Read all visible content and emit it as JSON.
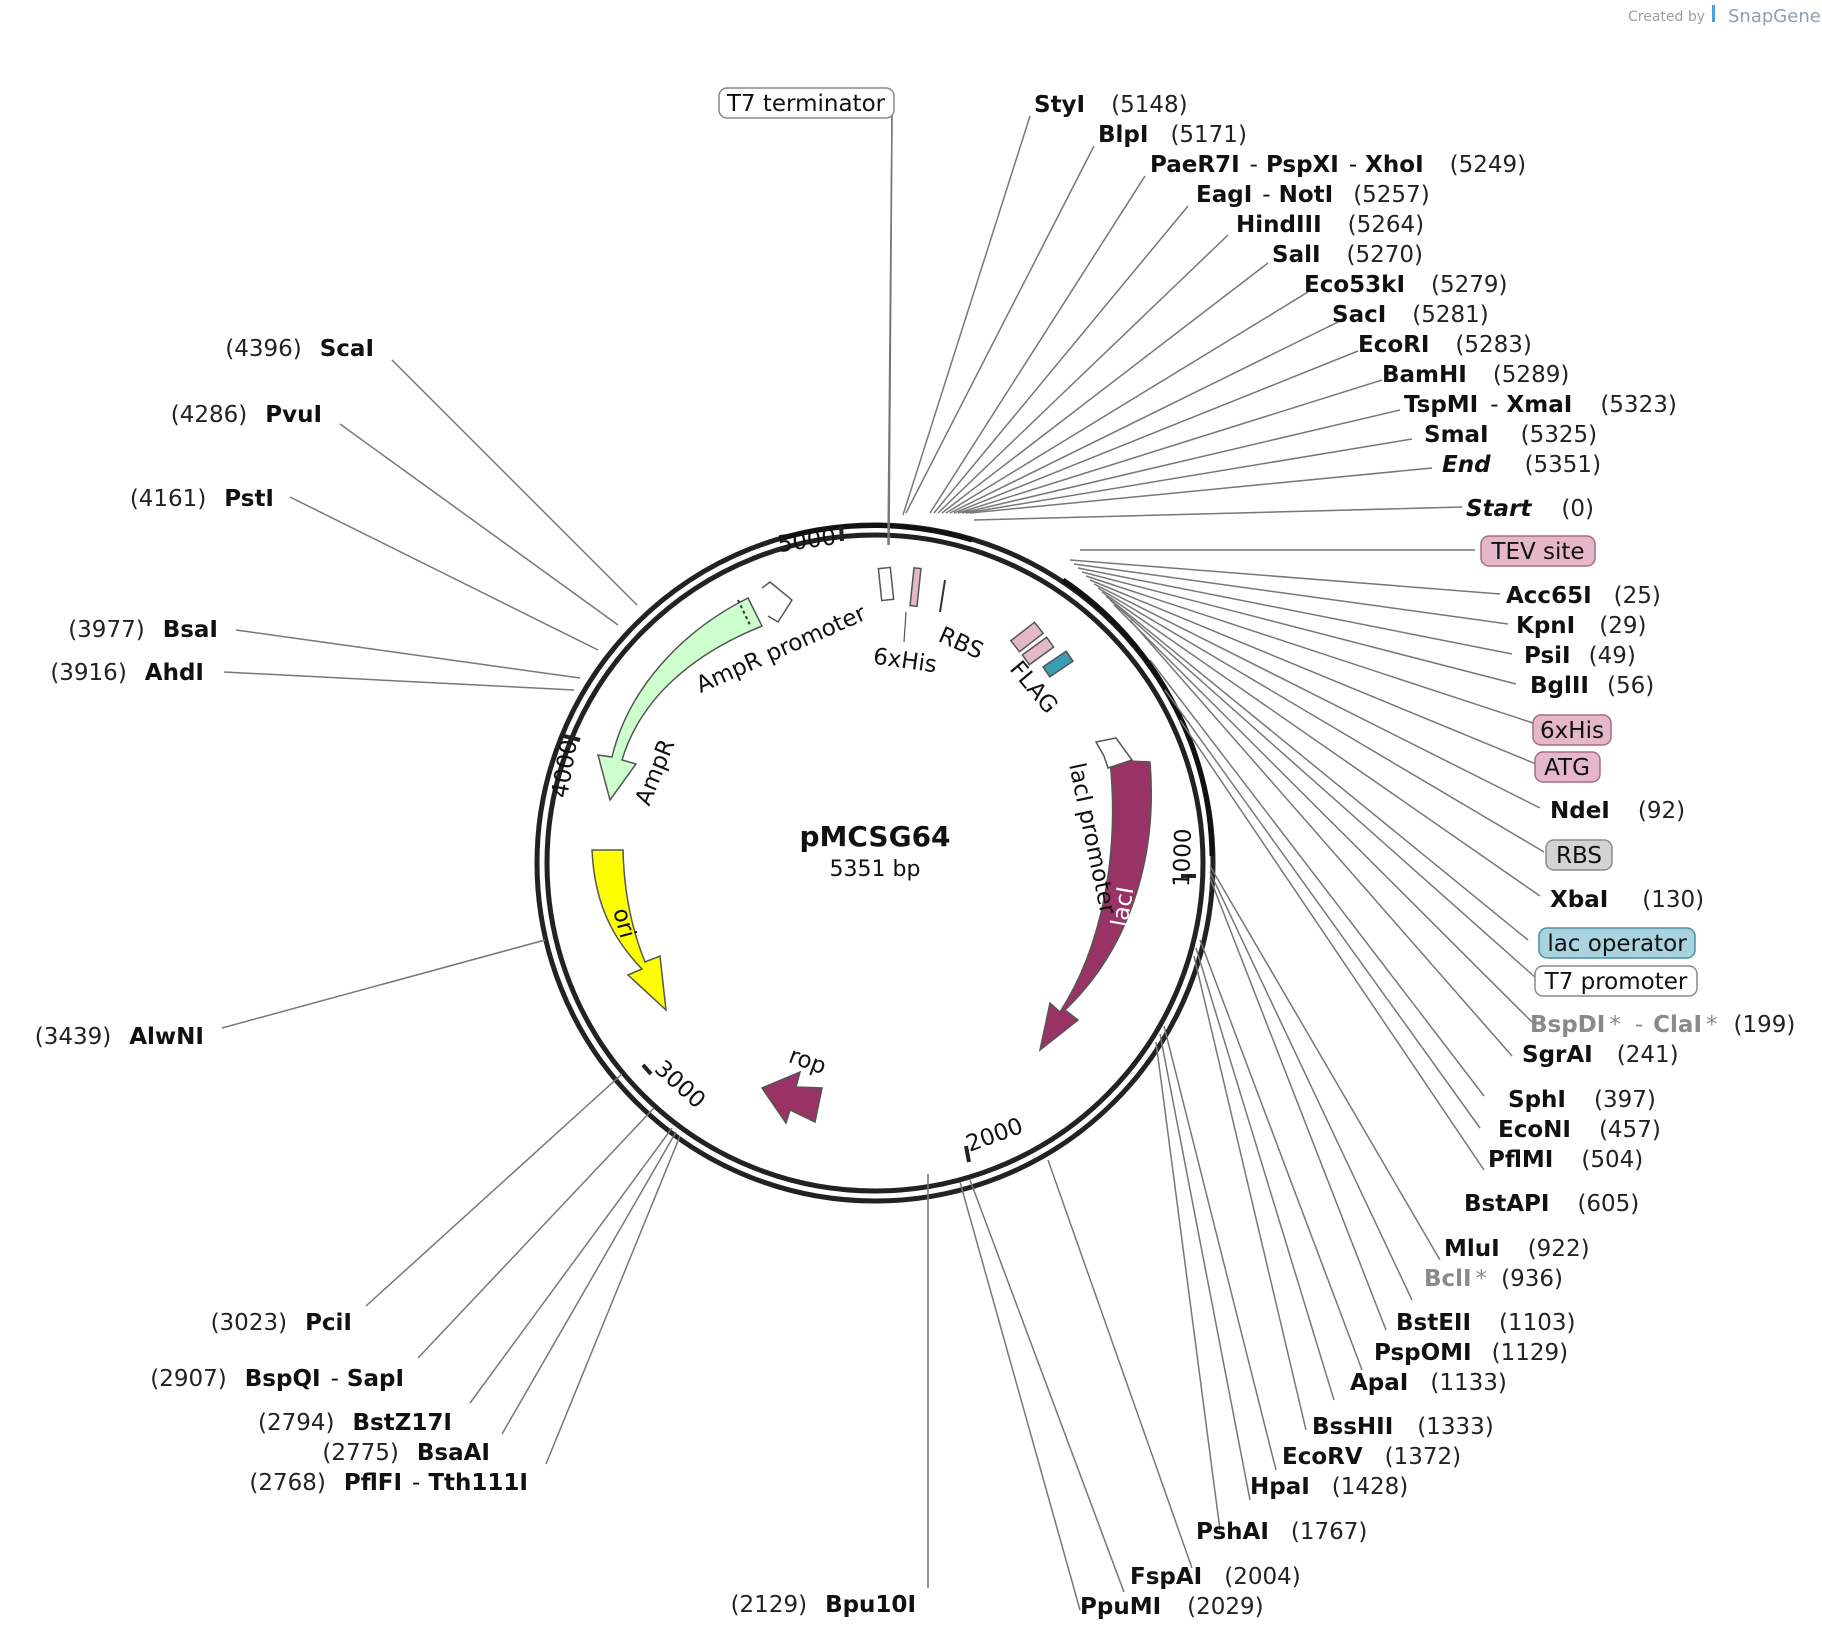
{
  "credit": {
    "created_by": "Created by",
    "brand": "SnapGene"
  },
  "plasmid": {
    "name": "pMCSG64",
    "length": "5351 bp"
  },
  "ticks": [
    "1000",
    "2000",
    "3000",
    "4000",
    "5000"
  ],
  "features": {
    "AmpR": "AmpR",
    "AmpR_promoter": "AmpR promoter",
    "ori": "ori",
    "rop": "rop",
    "lacI": "lacI",
    "lacI_promoter": "lacI promoter",
    "RBS": "RBS",
    "his": "6xHis",
    "FLAG": "FLAG"
  },
  "left_sites": [
    {
      "pos": "(4396)",
      "name": "ScaI"
    },
    {
      "pos": "(4286)",
      "name": "PvuI"
    },
    {
      "pos": "(4161)",
      "name": "PstI"
    },
    {
      "pos": "(3977)",
      "name": "BsaI"
    },
    {
      "pos": "(3916)",
      "name": "AhdI"
    },
    {
      "pos": "(3439)",
      "name": "AlwNI"
    },
    {
      "pos": "(3023)",
      "name": "PciI"
    },
    {
      "pos": "(2907)",
      "name": "BspQI",
      "name2": "SapI"
    },
    {
      "pos": "(2794)",
      "name": "BstZ17I"
    },
    {
      "pos": "(2775)",
      "name": "BsaAI"
    },
    {
      "pos": "(2768)",
      "name": "PflFI",
      "name2": "Tth111I"
    },
    {
      "pos": "(2129)",
      "name": "Bpu10I"
    }
  ],
  "top_sites": [
    {
      "name": "StyI",
      "pos": "(5148)"
    },
    {
      "name": "BlpI",
      "pos": "(5171)"
    },
    {
      "name": "PaeR7I",
      "name2": "PspXI",
      "name3": "XhoI",
      "pos": "(5249)"
    },
    {
      "name": "EagI",
      "name2": "NotI",
      "pos": "(5257)"
    },
    {
      "name": "HindIII",
      "pos": "(5264)"
    },
    {
      "name": "SalI",
      "pos": "(5270)"
    },
    {
      "name": "Eco53kI",
      "pos": "(5279)"
    },
    {
      "name": "SacI",
      "pos": "(5281)"
    },
    {
      "name": "EcoRI",
      "pos": "(5283)"
    },
    {
      "name": "BamHI",
      "pos": "(5289)"
    },
    {
      "name": "TspMI",
      "name2": "XmaI",
      "pos": "(5323)"
    },
    {
      "name": "SmaI",
      "pos": "(5325)"
    },
    {
      "name": "End",
      "pos": "(5351)"
    },
    {
      "name": "Start",
      "pos": "(0)"
    }
  ],
  "right_sites": [
    {
      "name": "Acc65I",
      "pos": "(25)"
    },
    {
      "name": "KpnI",
      "pos": "(29)"
    },
    {
      "name": "PsiI",
      "pos": "(49)"
    },
    {
      "name": "BglII",
      "pos": "(56)"
    },
    {
      "name": "NdeI",
      "pos": "(92)"
    },
    {
      "name": "XbaI",
      "pos": "(130)"
    },
    {
      "name": "BspDI",
      "star": "*",
      "name2": "ClaI",
      "star2": "*",
      "pos": "(199)"
    },
    {
      "name": "SgrAI",
      "pos": "(241)"
    },
    {
      "name": "SphI",
      "pos": "(397)"
    },
    {
      "name": "EcoNI",
      "pos": "(457)"
    },
    {
      "name": "PflMI",
      "pos": "(504)"
    },
    {
      "name": "BstAPI",
      "pos": "(605)"
    },
    {
      "name": "MluI",
      "pos": "(922)"
    },
    {
      "name": "BclI",
      "star": "*",
      "pos": "(936)"
    },
    {
      "name": "BstEII",
      "pos": "(1103)"
    },
    {
      "name": "PspOMI",
      "pos": "(1129)"
    },
    {
      "name": "ApaI",
      "pos": "(1133)"
    },
    {
      "name": "BssHII",
      "pos": "(1333)"
    },
    {
      "name": "EcoRV",
      "pos": "(1372)"
    },
    {
      "name": "HpaI",
      "pos": "(1428)"
    },
    {
      "name": "PshAI",
      "pos": "(1767)"
    },
    {
      "name": "FspAI",
      "pos": "(2004)"
    },
    {
      "name": "PpuMI",
      "pos": "(2029)"
    }
  ],
  "boxed_features": [
    {
      "label": "T7 terminator",
      "fill": "#ffffff",
      "stroke": "#888888"
    },
    {
      "label": "TEV site",
      "fill": "#e4b8c8",
      "stroke": "#a86a84"
    },
    {
      "label": "6xHis",
      "fill": "#e4b8c8",
      "stroke": "#a86a84"
    },
    {
      "label": "ATG",
      "fill": "#e4b8c8",
      "stroke": "#a86a84"
    },
    {
      "label": "RBS",
      "fill": "#d3d3d3",
      "stroke": "#8a8a8a"
    },
    {
      "label": "lac operator",
      "fill": "#a9d3df",
      "stroke": "#4e8fa3"
    },
    {
      "label": "T7 promoter",
      "fill": "#ffffff",
      "stroke": "#888888"
    }
  ],
  "colors": {
    "AmpR": "#ccffcc",
    "ori": "#ffff00",
    "lacI": "#993366",
    "rop": "#993366",
    "backbone": "#222222"
  }
}
